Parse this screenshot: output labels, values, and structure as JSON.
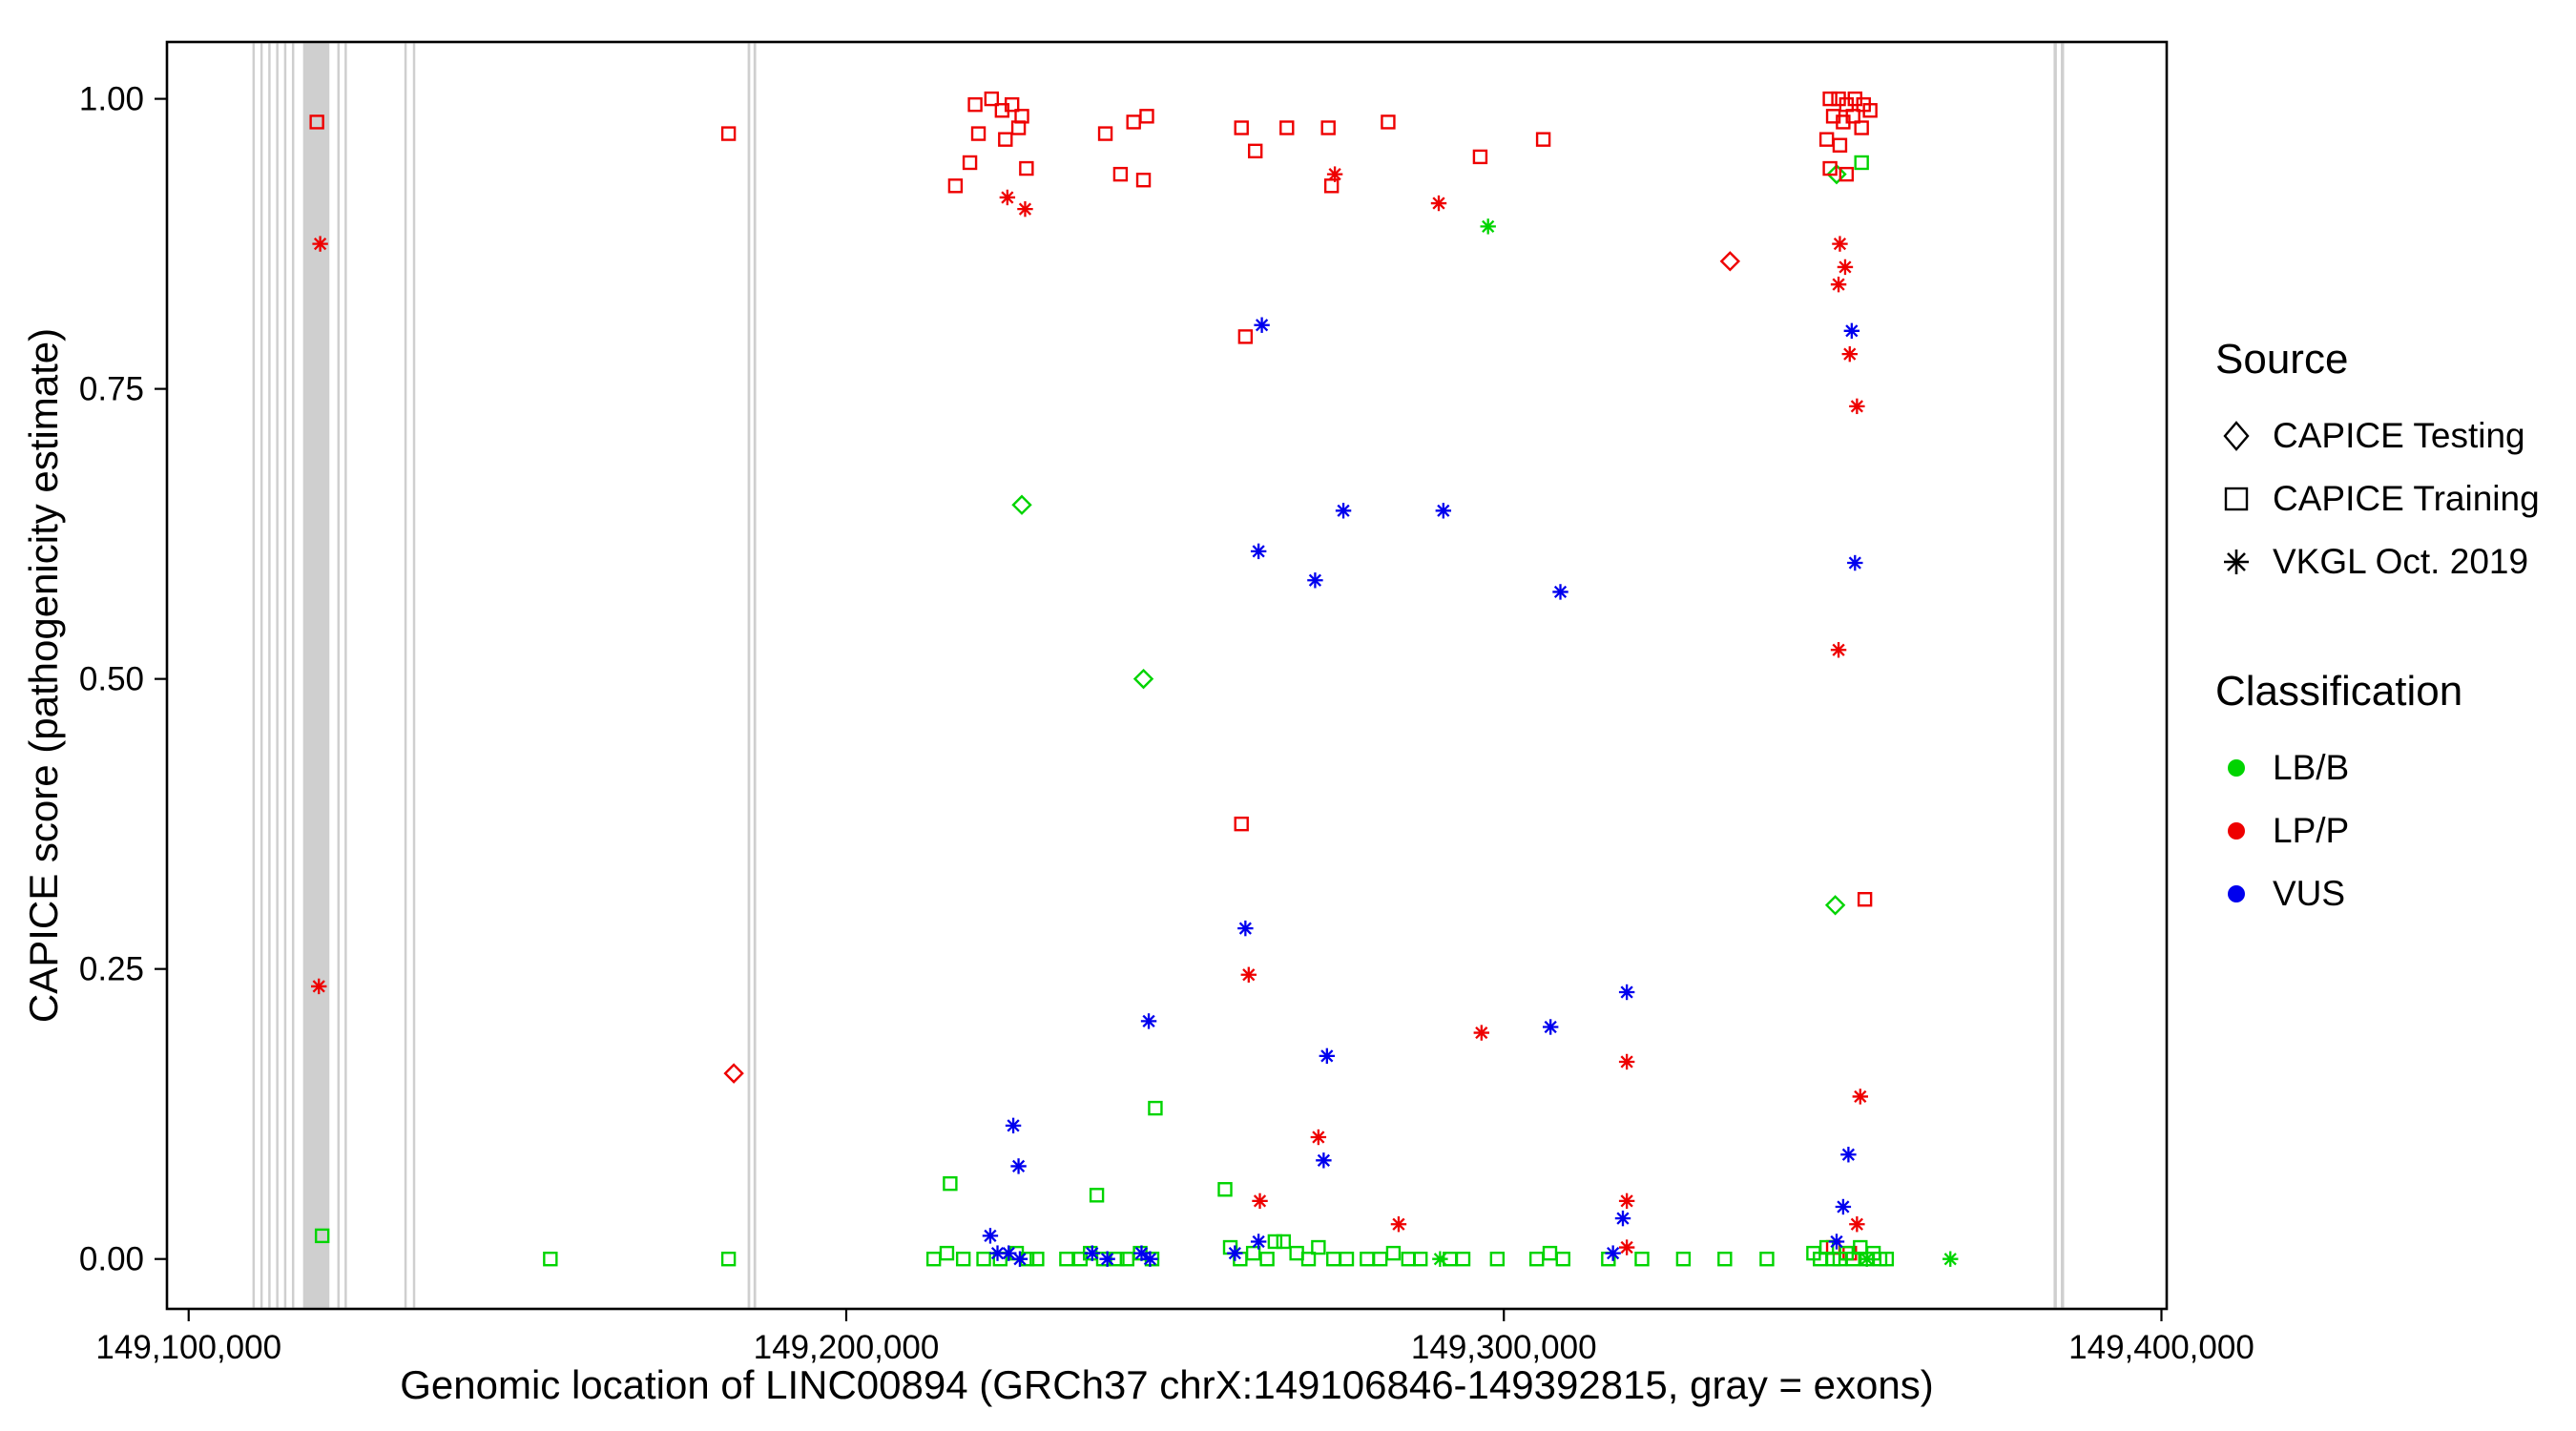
{
  "legend": {
    "source": {
      "title": "Source",
      "items": [
        {
          "label": "CAPICE Testing",
          "marker": "diamond"
        },
        {
          "label": "CAPICE Training",
          "marker": "square"
        },
        {
          "label": "VKGL Oct. 2019",
          "marker": "asterisk"
        }
      ]
    },
    "classification": {
      "title": "Classification",
      "items": [
        {
          "label": "LB/B",
          "color": "#00D400"
        },
        {
          "label": "LP/P",
          "color": "#EE0000"
        },
        {
          "label": "VUS",
          "color": "#0000EE"
        }
      ]
    }
  },
  "chart_data": {
    "type": "scatter",
    "title": "",
    "xlabel": "Genomic location of LINC00894 (GRCh37 chrX:149106846-149392815, gray = exons)",
    "ylabel": "CAPICE score (pathogenicity estimate)",
    "x_domain": [
      149096700,
      149400800
    ],
    "y_domain": [
      -0.043,
      1.049
    ],
    "x_ticks": [
      {
        "value": 149100000,
        "label": "149,100,000"
      },
      {
        "value": 149200000,
        "label": "149,200,000"
      },
      {
        "value": 149300000,
        "label": "149,300,000"
      },
      {
        "value": 149400000,
        "label": "149,400,000"
      }
    ],
    "y_ticks": [
      {
        "value": 0.0,
        "label": "0.00"
      },
      {
        "value": 0.25,
        "label": "0.25"
      },
      {
        "value": 0.5,
        "label": "0.50"
      },
      {
        "value": 0.75,
        "label": "0.75"
      },
      {
        "value": 1.0,
        "label": "1.00"
      }
    ],
    "grid": false,
    "legend_position": "right",
    "exon_color": "#CFCFCF",
    "exon_note": "gray vertical bands = exons",
    "exons": [
      [
        149109700,
        149110000
      ],
      [
        149110900,
        149111200
      ],
      [
        149112100,
        149112400
      ],
      [
        149113300,
        149113600
      ],
      [
        149114500,
        149114800
      ],
      [
        149115700,
        149116000
      ],
      [
        149117400,
        149121400
      ],
      [
        149122600,
        149122900
      ],
      [
        149123700,
        149124000
      ],
      [
        149132800,
        149133100
      ],
      [
        149134100,
        149134400
      ],
      [
        149185000,
        149185400
      ],
      [
        149185900,
        149186300
      ],
      [
        149383600,
        149384100
      ],
      [
        149384700,
        149385200
      ]
    ],
    "series": [
      {
        "name": "CAPICE Testing LP/P",
        "source": "CAPICE Testing",
        "classification": "LP/P",
        "marker": "diamond",
        "color": "#EE0000",
        "points": [
          [
            149182900,
            0.16
          ],
          [
            149334400,
            0.86
          ]
        ]
      },
      {
        "name": "CAPICE Testing LB/B",
        "source": "CAPICE Testing",
        "classification": "LB/B",
        "marker": "diamond",
        "color": "#00D400",
        "points": [
          [
            149226700,
            0.65
          ],
          [
            149245200,
            0.5
          ],
          [
            149350600,
            0.935
          ],
          [
            149350400,
            0.305
          ]
        ]
      },
      {
        "name": "CAPICE Training LP/P",
        "source": "CAPICE Training",
        "classification": "LP/P",
        "marker": "square",
        "color": "#EE0000",
        "points": [
          [
            149119500,
            0.98
          ],
          [
            149182100,
            0.97
          ],
          [
            149219600,
            0.995
          ],
          [
            149222100,
            1.0
          ],
          [
            149223700,
            0.99
          ],
          [
            149225200,
            0.995
          ],
          [
            149226700,
            0.985
          ],
          [
            149220100,
            0.97
          ],
          [
            149224200,
            0.965
          ],
          [
            149226200,
            0.975
          ],
          [
            149218800,
            0.945
          ],
          [
            149227400,
            0.94
          ],
          [
            149216600,
            0.925
          ],
          [
            149239400,
            0.97
          ],
          [
            149243700,
            0.98
          ],
          [
            149245700,
            0.985
          ],
          [
            149241700,
            0.935
          ],
          [
            149245200,
            0.93
          ],
          [
            149260100,
            0.975
          ],
          [
            149262200,
            0.955
          ],
          [
            149260700,
            0.795
          ],
          [
            149260100,
            0.375
          ],
          [
            149267000,
            0.975
          ],
          [
            149273300,
            0.975
          ],
          [
            149273800,
            0.925
          ],
          [
            149282400,
            0.98
          ],
          [
            149296400,
            0.95
          ],
          [
            149306000,
            0.965
          ],
          [
            149349600,
            1.0
          ],
          [
            149350900,
            1.0
          ],
          [
            149352100,
            0.995
          ],
          [
            149353400,
            1.0
          ],
          [
            149354700,
            0.995
          ],
          [
            149355700,
            0.99
          ],
          [
            149350100,
            0.985
          ],
          [
            149351600,
            0.98
          ],
          [
            149353100,
            0.985
          ],
          [
            149354400,
            0.975
          ],
          [
            149349100,
            0.965
          ],
          [
            149351100,
            0.96
          ],
          [
            149349600,
            0.94
          ],
          [
            149352100,
            0.935
          ],
          [
            149354900,
            0.31
          ],
          [
            149350100,
            0.01
          ],
          [
            149352600,
            0.005
          ]
        ]
      },
      {
        "name": "CAPICE Training LB/B",
        "source": "CAPICE Training",
        "classification": "LB/B",
        "marker": "square",
        "color": "#00D400",
        "points": [
          [
            149120300,
            0.02
          ],
          [
            149155000,
            0.0
          ],
          [
            149182100,
            0.0
          ],
          [
            149215800,
            0.065
          ],
          [
            149213300,
            0.0
          ],
          [
            149215300,
            0.005
          ],
          [
            149217800,
            0.0
          ],
          [
            149220900,
            0.0
          ],
          [
            149223400,
            0.0
          ],
          [
            149225900,
            0.005
          ],
          [
            149227500,
            0.0
          ],
          [
            149229000,
            0.0
          ],
          [
            149238100,
            0.055
          ],
          [
            149247000,
            0.13
          ],
          [
            149233500,
            0.0
          ],
          [
            149235600,
            0.0
          ],
          [
            149237100,
            0.005
          ],
          [
            149239100,
            0.0
          ],
          [
            149241200,
            0.0
          ],
          [
            149242700,
            0.0
          ],
          [
            149244700,
            0.005
          ],
          [
            149246500,
            0.0
          ],
          [
            149257600,
            0.06
          ],
          [
            149258400,
            0.01
          ],
          [
            149259900,
            0.0
          ],
          [
            149261900,
            0.005
          ],
          [
            149264000,
            0.0
          ],
          [
            149265200,
            0.015
          ],
          [
            149266500,
            0.015
          ],
          [
            149268500,
            0.005
          ],
          [
            149270300,
            0.0
          ],
          [
            149271800,
            0.01
          ],
          [
            149274100,
            0.0
          ],
          [
            149276100,
            0.0
          ],
          [
            149279200,
            0.0
          ],
          [
            149281200,
            0.0
          ],
          [
            149283200,
            0.005
          ],
          [
            149285500,
            0.0
          ],
          [
            149287300,
            0.0
          ],
          [
            149291800,
            0.0
          ],
          [
            149293800,
            0.0
          ],
          [
            149299000,
            0.0
          ],
          [
            149305000,
            0.0
          ],
          [
            149307000,
            0.005
          ],
          [
            149309000,
            0.0
          ],
          [
            149315900,
            0.0
          ],
          [
            149321000,
            0.0
          ],
          [
            149327300,
            0.0
          ],
          [
            149333600,
            0.0
          ],
          [
            149340000,
            0.0
          ],
          [
            149347100,
            0.005
          ],
          [
            149348100,
            0.0
          ],
          [
            149349100,
            0.01
          ],
          [
            149350100,
            0.0
          ],
          [
            149351100,
            0.0
          ],
          [
            149352100,
            0.005
          ],
          [
            149353100,
            0.0
          ],
          [
            149354200,
            0.01
          ],
          [
            149355200,
            0.0
          ],
          [
            149356200,
            0.005
          ],
          [
            149357200,
            0.0
          ],
          [
            149358200,
            0.0
          ],
          [
            149354400,
            0.945
          ]
        ]
      },
      {
        "name": "VKGL Oct. 2019 LP/P",
        "source": "VKGL Oct. 2019",
        "classification": "LP/P",
        "marker": "asterisk",
        "color": "#EE0000",
        "points": [
          [
            149120000,
            0.875
          ],
          [
            149119800,
            0.235
          ],
          [
            149224500,
            0.915
          ],
          [
            149227200,
            0.905
          ],
          [
            149261200,
            0.245
          ],
          [
            149262900,
            0.05
          ],
          [
            149274300,
            0.935
          ],
          [
            149271800,
            0.105
          ],
          [
            149284000,
            0.03
          ],
          [
            149290100,
            0.91
          ],
          [
            149296600,
            0.195
          ],
          [
            149318700,
            0.17
          ],
          [
            149318700,
            0.05
          ],
          [
            149318700,
            0.01
          ],
          [
            149351100,
            0.875
          ],
          [
            149351900,
            0.855
          ],
          [
            149350900,
            0.84
          ],
          [
            149352600,
            0.78
          ],
          [
            149353700,
            0.735
          ],
          [
            149350900,
            0.525
          ],
          [
            149354200,
            0.14
          ],
          [
            149353700,
            0.03
          ]
        ]
      },
      {
        "name": "VKGL Oct. 2019 LB/B",
        "source": "VKGL Oct. 2019",
        "classification": "LB/B",
        "marker": "asterisk",
        "color": "#00D400",
        "points": [
          [
            149297600,
            0.89
          ],
          [
            149290300,
            0.0
          ],
          [
            149367900,
            0.0
          ],
          [
            149355200,
            0.0
          ]
        ]
      },
      {
        "name": "VKGL Oct. 2019 VUS",
        "source": "VKGL Oct. 2019",
        "classification": "VUS",
        "marker": "asterisk",
        "color": "#0000EE",
        "points": [
          [
            149263200,
            0.805
          ],
          [
            149262700,
            0.61
          ],
          [
            149271300,
            0.585
          ],
          [
            149275600,
            0.645
          ],
          [
            149290800,
            0.645
          ],
          [
            149308600,
            0.575
          ],
          [
            149352900,
            0.8
          ],
          [
            149353400,
            0.6
          ],
          [
            149246000,
            0.205
          ],
          [
            149307100,
            0.2
          ],
          [
            149318700,
            0.23
          ],
          [
            149260700,
            0.285
          ],
          [
            149273100,
            0.175
          ],
          [
            149225400,
            0.115
          ],
          [
            149226200,
            0.08
          ],
          [
            149272600,
            0.085
          ],
          [
            149352400,
            0.09
          ],
          [
            149351600,
            0.045
          ],
          [
            149221900,
            0.02
          ],
          [
            149224700,
            0.005
          ],
          [
            149226400,
            0.0
          ],
          [
            149223000,
            0.005
          ],
          [
            149237400,
            0.005
          ],
          [
            149239700,
            0.0
          ],
          [
            149244900,
            0.005
          ],
          [
            149246200,
            0.0
          ],
          [
            149259100,
            0.005
          ],
          [
            149262700,
            0.015
          ],
          [
            149318100,
            0.035
          ],
          [
            149316600,
            0.005
          ],
          [
            149350600,
            0.015
          ]
        ]
      }
    ]
  }
}
